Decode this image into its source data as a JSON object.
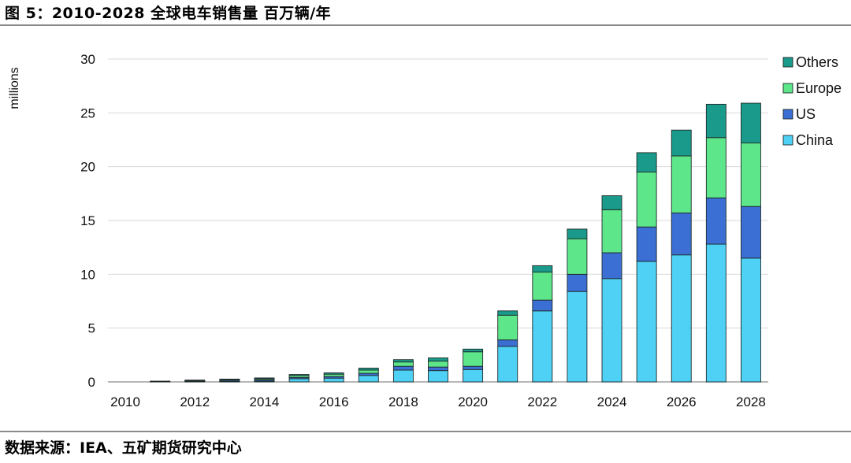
{
  "figure": {
    "title": "图 5：2010-2028 全球电车销售量 百万辆/年",
    "source": "数据来源：IEA、五矿期货研究中心"
  },
  "chart_data": {
    "type": "bar",
    "stacked": true,
    "ylabel": "millions",
    "xlabel": "",
    "ylim": [
      0,
      30
    ],
    "yticks": [
      0,
      5,
      10,
      15,
      20,
      25,
      30
    ],
    "grid": true,
    "legend_position": "right",
    "categories": [
      "2010",
      "2011",
      "2012",
      "2013",
      "2014",
      "2015",
      "2016",
      "2017",
      "2018",
      "2019",
      "2020",
      "2021",
      "2022",
      "2023",
      "2024",
      "2025",
      "2026",
      "2027",
      "2028"
    ],
    "x_tick_labels": [
      "2010",
      "2012",
      "2014",
      "2016",
      "2018",
      "2020",
      "2022",
      "2024",
      "2026",
      "2028"
    ],
    "series": [
      {
        "name": "China",
        "color": "#4fd1f5",
        "values": [
          0.0,
          0.01,
          0.03,
          0.04,
          0.08,
          0.3,
          0.35,
          0.6,
          1.1,
          1.05,
          1.15,
          3.3,
          6.6,
          8.4,
          9.6,
          11.2,
          11.8,
          12.8,
          11.5
        ]
      },
      {
        "name": "US",
        "color": "#3b6fd4",
        "values": [
          0.0,
          0.02,
          0.05,
          0.1,
          0.12,
          0.12,
          0.15,
          0.2,
          0.35,
          0.33,
          0.3,
          0.6,
          1.0,
          1.6,
          2.4,
          3.2,
          3.9,
          4.3,
          4.8
        ]
      },
      {
        "name": "Europe",
        "color": "#5ee68a",
        "values": [
          0.0,
          0.02,
          0.05,
          0.07,
          0.1,
          0.18,
          0.22,
          0.3,
          0.4,
          0.55,
          1.35,
          2.3,
          2.6,
          3.3,
          4.0,
          5.1,
          5.3,
          5.6,
          5.9
        ]
      },
      {
        "name": "Others",
        "color": "#1a9a8a",
        "values": [
          0.0,
          0.02,
          0.04,
          0.05,
          0.07,
          0.09,
          0.12,
          0.18,
          0.22,
          0.3,
          0.25,
          0.4,
          0.6,
          0.9,
          1.3,
          1.8,
          2.4,
          3.1,
          3.7
        ]
      }
    ],
    "legend_order": [
      "Others",
      "Europe",
      "US",
      "China"
    ]
  }
}
